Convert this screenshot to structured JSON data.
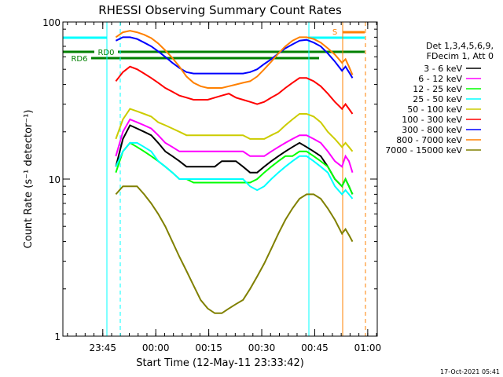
{
  "chart_data": {
    "type": "line",
    "title": "RHESSI Observing Summary Count Rates",
    "xlabel": "Start Time (12-May-11 23:33:42)",
    "ylabel": "Count Rate (s⁻¹ detector⁻¹)",
    "yscale": "log",
    "ylim": [
      1,
      100
    ],
    "xlim_minutes_from_2333_42": [
      0,
      89
    ],
    "x_ticks": [
      {
        "label": "23:45",
        "min": 11.3
      },
      {
        "label": "00:00",
        "min": 26.3
      },
      {
        "label": "00:15",
        "min": 41.3
      },
      {
        "label": "00:30",
        "min": 56.3
      },
      {
        "label": "00:45",
        "min": 71.3
      },
      {
        "label": "01:00",
        "min": 86.3
      }
    ],
    "y_ticks": [
      {
        "label": "100",
        "value": 100
      },
      {
        "label": "10",
        "value": 10
      },
      {
        "label": "1",
        "value": 1
      }
    ],
    "legend_header": [
      "Det 1,3,4,5,6,9,",
      "FDecim 1, Att 0"
    ],
    "series": [
      {
        "name": "3 - 6 keV",
        "color": "#000000",
        "t": [
          15,
          17,
          19,
          21,
          23,
          25,
          27,
          29,
          31,
          33,
          35,
          37,
          39,
          41,
          43,
          45,
          47,
          49,
          51,
          53,
          55,
          57,
          59,
          61,
          63,
          65,
          67,
          69,
          71,
          73,
          75,
          77,
          79,
          80,
          81,
          82
        ],
        "y": [
          12,
          18,
          22,
          21,
          20,
          19,
          17,
          15,
          14,
          13,
          12,
          12,
          12,
          12,
          12,
          13,
          13,
          13,
          12,
          11,
          11,
          12,
          13,
          14,
          15,
          16,
          17,
          16,
          15,
          14,
          12,
          10,
          9,
          10,
          9,
          8
        ]
      },
      {
        "name": "6 - 12 keV",
        "color": "#ff00ff",
        "t": [
          15,
          17,
          19,
          21,
          23,
          25,
          27,
          29,
          31,
          33,
          35,
          37,
          39,
          41,
          43,
          45,
          47,
          49,
          51,
          53,
          55,
          57,
          59,
          61,
          63,
          65,
          67,
          69,
          71,
          73,
          75,
          77,
          79,
          80,
          81,
          82
        ],
        "y": [
          14,
          20,
          24,
          23,
          22,
          21,
          19,
          17,
          16,
          15,
          15,
          15,
          15,
          15,
          15,
          15,
          15,
          15,
          15,
          14,
          14,
          14,
          15,
          16,
          17,
          18,
          19,
          19,
          18,
          17,
          15,
          13,
          12,
          14,
          13,
          11
        ]
      },
      {
        "name": "12 - 25 keV",
        "color": "#00ff00",
        "t": [
          15,
          17,
          19,
          21,
          23,
          25,
          27,
          29,
          31,
          33,
          35,
          37,
          39,
          41,
          43,
          45,
          47,
          49,
          51,
          53,
          55,
          57,
          59,
          61,
          63,
          65,
          67,
          69,
          71,
          73,
          75,
          77,
          79,
          80,
          81,
          82
        ],
        "y": [
          11,
          15,
          17,
          16,
          15,
          14,
          13,
          12,
          11,
          10,
          10,
          9.5,
          9.5,
          9.5,
          9.5,
          9.5,
          9.5,
          9.5,
          9.5,
          9.5,
          10,
          11,
          12,
          13,
          14,
          14,
          15,
          15,
          14,
          13,
          12,
          10,
          9,
          10,
          9,
          8
        ]
      },
      {
        "name": "25 - 50 keV",
        "color": "#00ffff",
        "t": [
          15,
          17,
          19,
          21,
          23,
          25,
          27,
          29,
          31,
          33,
          35,
          37,
          39,
          41,
          43,
          45,
          47,
          49,
          51,
          53,
          55,
          57,
          59,
          61,
          63,
          65,
          67,
          69,
          71,
          73,
          75,
          77,
          79,
          80,
          81,
          82
        ],
        "y": [
          12,
          15,
          17,
          17,
          16,
          15,
          13,
          12,
          11,
          10,
          10,
          10,
          10,
          10,
          10,
          10,
          10,
          10,
          10,
          9,
          8.5,
          9,
          10,
          11,
          12,
          13,
          14,
          14,
          13,
          12,
          11,
          9,
          8,
          8.5,
          8,
          7.5
        ]
      },
      {
        "name": "50 - 100 keV",
        "color": "#cccc00",
        "t": [
          15,
          17,
          19,
          21,
          23,
          25,
          27,
          29,
          31,
          33,
          35,
          37,
          39,
          41,
          43,
          45,
          47,
          49,
          51,
          53,
          55,
          57,
          59,
          61,
          63,
          65,
          67,
          69,
          71,
          73,
          75,
          77,
          79,
          80,
          81,
          82
        ],
        "y": [
          18,
          24,
          28,
          27,
          26,
          25,
          23,
          22,
          21,
          20,
          19,
          19,
          19,
          19,
          19,
          19,
          19,
          19,
          19,
          18,
          18,
          18,
          19,
          20,
          22,
          24,
          26,
          26,
          25,
          23,
          20,
          18,
          16,
          17,
          16,
          15
        ]
      },
      {
        "name": "100 - 300 keV",
        "color": "#ff0000",
        "t": [
          15,
          17,
          19,
          21,
          23,
          25,
          27,
          29,
          31,
          33,
          35,
          37,
          39,
          41,
          43,
          45,
          47,
          49,
          51,
          53,
          55,
          57,
          59,
          61,
          63,
          65,
          67,
          69,
          71,
          73,
          75,
          77,
          79,
          80,
          81,
          82
        ],
        "y": [
          42,
          48,
          52,
          50,
          47,
          44,
          41,
          38,
          36,
          34,
          33,
          32,
          32,
          32,
          33,
          34,
          35,
          33,
          32,
          31,
          30,
          31,
          33,
          35,
          38,
          41,
          44,
          44,
          42,
          39,
          35,
          31,
          28,
          30,
          28,
          26
        ]
      },
      {
        "name": "300 - 800 keV",
        "color": "#0000ff",
        "t": [
          15,
          17,
          19,
          21,
          23,
          25,
          27,
          29,
          31,
          33,
          35,
          37,
          39,
          41,
          43,
          45,
          47,
          49,
          51,
          53,
          55,
          57,
          59,
          61,
          63,
          65,
          67,
          69,
          71,
          73,
          75,
          77,
          79,
          80,
          81,
          82
        ],
        "y": [
          76,
          80,
          80,
          78,
          74,
          70,
          65,
          60,
          55,
          51,
          48,
          47,
          47,
          47,
          47,
          47,
          47,
          47,
          47,
          48,
          50,
          54,
          58,
          63,
          68,
          72,
          76,
          77,
          74,
          70,
          63,
          56,
          49,
          52,
          48,
          44
        ]
      },
      {
        "name": "800 - 7000 keV",
        "color": "#ff8000",
        "t": [
          15,
          17,
          19,
          21,
          23,
          25,
          27,
          29,
          31,
          33,
          35,
          37,
          39,
          41,
          43,
          45,
          47,
          49,
          51,
          53,
          55,
          57,
          59,
          61,
          63,
          65,
          67,
          69,
          71,
          73,
          75,
          77,
          79,
          80,
          81,
          82
        ],
        "y": [
          80,
          86,
          88,
          86,
          83,
          79,
          73,
          66,
          59,
          52,
          45,
          41,
          39,
          38,
          38,
          38,
          39,
          40,
          41,
          42,
          45,
          50,
          56,
          63,
          70,
          76,
          80,
          80,
          78,
          74,
          68,
          62,
          55,
          58,
          52,
          46
        ]
      },
      {
        "name": "7000 - 15000 keV",
        "color": "#808000",
        "t": [
          15,
          17,
          19,
          21,
          23,
          25,
          27,
          29,
          31,
          33,
          35,
          37,
          39,
          41,
          43,
          45,
          47,
          49,
          51,
          53,
          55,
          57,
          59,
          61,
          63,
          65,
          67,
          69,
          71,
          73,
          75,
          77,
          79,
          80,
          81,
          82
        ],
        "y": [
          8,
          9,
          9,
          9,
          8,
          7,
          6,
          5,
          4,
          3.2,
          2.6,
          2.1,
          1.7,
          1.5,
          1.4,
          1.4,
          1.5,
          1.6,
          1.7,
          2,
          2.4,
          2.9,
          3.6,
          4.5,
          5.5,
          6.5,
          7.5,
          8,
          8,
          7.5,
          6.5,
          5.5,
          4.5,
          4.8,
          4.4,
          4
        ]
      }
    ],
    "annotations": [
      {
        "label": "RD0",
        "color": "#008000"
      },
      {
        "label": "RD6",
        "color": "#008000"
      },
      {
        "label": "S",
        "color": "#ff8000"
      }
    ],
    "footer": "17-Oct-2021 05:41"
  }
}
